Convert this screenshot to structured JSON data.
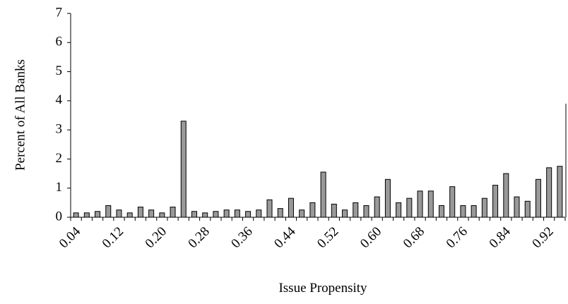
{
  "chart_data": {
    "type": "bar",
    "xlabel": "Issue Propensity",
    "ylabel": "Percent of All Banks",
    "categories": [
      "0.04",
      null,
      null,
      null,
      "0.12",
      null,
      null,
      null,
      "0.20",
      null,
      null,
      null,
      "0.28",
      null,
      null,
      null,
      "0.36",
      null,
      null,
      null,
      "0.44",
      null,
      null,
      null,
      "0.52",
      null,
      null,
      null,
      "0.60",
      null,
      null,
      null,
      "0.68",
      null,
      null,
      null,
      "0.76",
      null,
      null,
      null,
      "0.84",
      null,
      null,
      null,
      "0.92",
      null
    ],
    "values": [
      0.15,
      0.15,
      0.2,
      0.4,
      0.25,
      0.15,
      0.35,
      0.25,
      0.15,
      0.35,
      3.3,
      0.2,
      0.15,
      0.2,
      0.25,
      0.25,
      0.2,
      0.25,
      0.6,
      0.3,
      0.65,
      0.25,
      0.5,
      1.55,
      0.45,
      0.25,
      0.5,
      0.4,
      0.7,
      1.3,
      0.5,
      0.65,
      0.9,
      0.9,
      0.4,
      1.05,
      0.4,
      0.4,
      0.65,
      1.1,
      1.5,
      0.7,
      0.55,
      1.3,
      1.7,
      1.75
    ],
    "color": "#999999",
    "ylim": [
      0,
      7
    ],
    "yticks": [
      0,
      1,
      2,
      3,
      4,
      5,
      6,
      7
    ]
  }
}
